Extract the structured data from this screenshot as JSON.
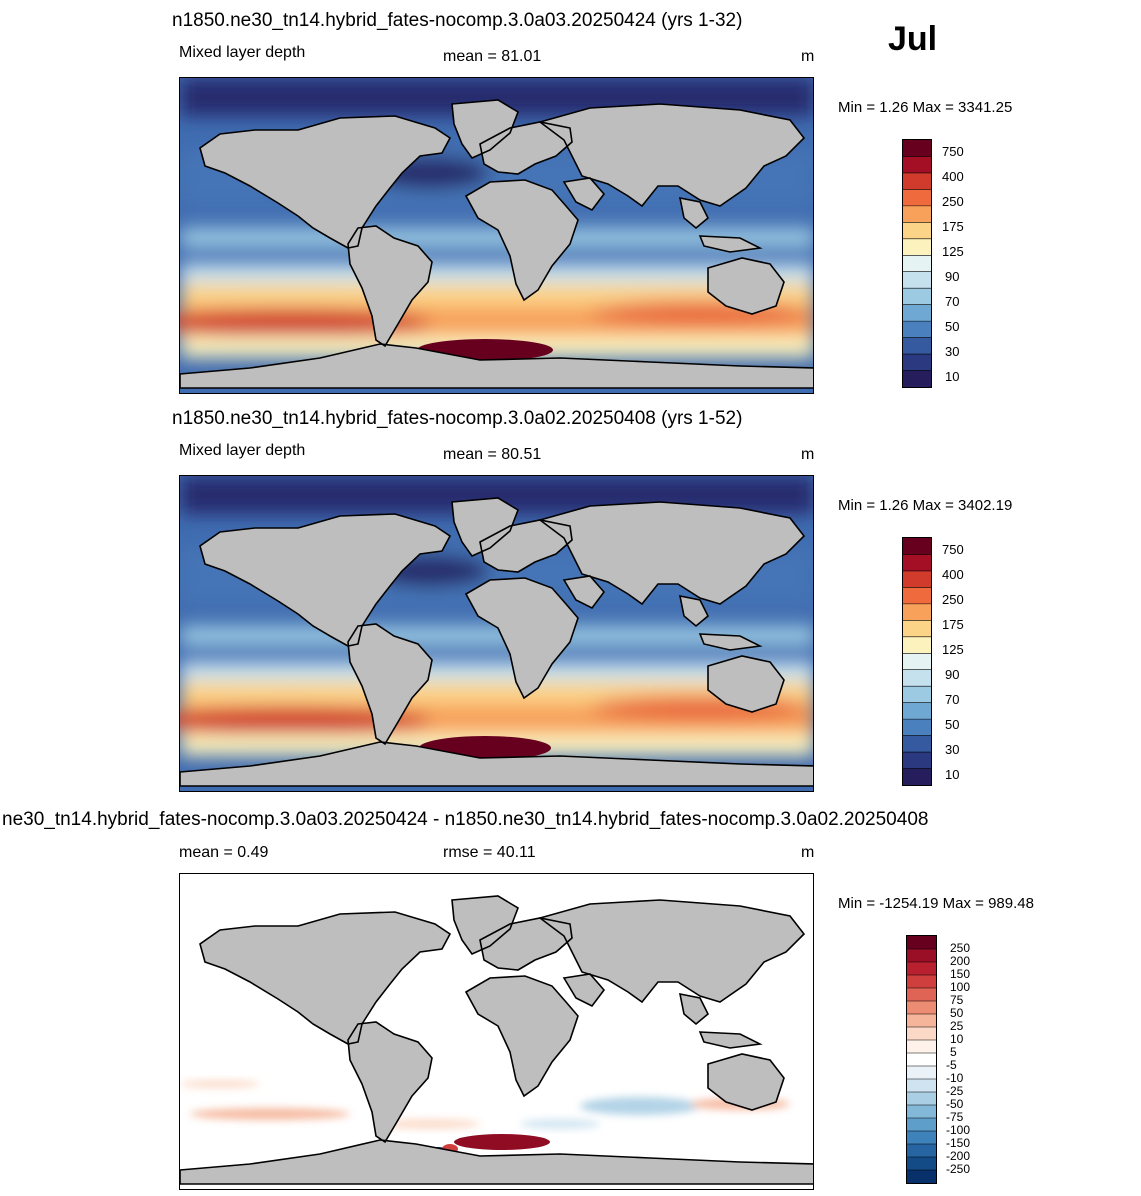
{
  "month": "Jul",
  "panels": [
    {
      "title": "n1850.ne30_tn14.hybrid_fates-nocomp.3.0a03.20250424 (yrs 1-32)",
      "variable": "Mixed layer depth",
      "stat": "mean =  81.01",
      "units": "m",
      "minmax": "Min =    1.26 Max = 3341.25"
    },
    {
      "title": "n1850.ne30_tn14.hybrid_fates-nocomp.3.0a02.20250408 (yrs 1-52)",
      "variable": "Mixed layer depth",
      "stat": "mean =  80.51",
      "units": "m",
      "minmax": "Min =    1.26 Max = 3402.19"
    },
    {
      "title": "ne30_tn14.hybrid_fates-nocomp.3.0a03.20250424 - n1850.ne30_tn14.hybrid_fates-nocomp.3.0a02.20250408",
      "variable": "mean =   0.49",
      "stat": "rmse =  40.11",
      "units": "m",
      "minmax": "Min = -1254.19 Max = 989.48"
    }
  ],
  "colorbar_main": {
    "labels": [
      "750",
      "400",
      "250",
      "175",
      "125",
      "90",
      "70",
      "50",
      "30",
      "10"
    ],
    "colors": [
      "#67001f",
      "#a50f26",
      "#d03b2c",
      "#ef6a3c",
      "#f7a15a",
      "#fcd488",
      "#fbf2bd",
      "#e6f3f3",
      "#c6e1ee",
      "#9ccae2",
      "#6fa8d3",
      "#4a80bd",
      "#355aa0",
      "#2b3a80",
      "#261e5c"
    ]
  },
  "colorbar_diff": {
    "labels": [
      "250",
      "200",
      "150",
      "100",
      "75",
      "50",
      "25",
      "10",
      "5",
      "-5",
      "-10",
      "-25",
      "-50",
      "-75",
      "-100",
      "-150",
      "-200",
      "-250"
    ],
    "colors": [
      "#67001f",
      "#9a0f25",
      "#b8202f",
      "#cf3f3d",
      "#df6455",
      "#ec8c72",
      "#f5b59a",
      "#fbd9c6",
      "#fef2ea",
      "#ffffff",
      "#eaf2f8",
      "#cfe3f0",
      "#aacfe4",
      "#83b8d8",
      "#5d9ecb",
      "#3d82ba",
      "#2665a2",
      "#134b87",
      "#08306b"
    ]
  }
}
